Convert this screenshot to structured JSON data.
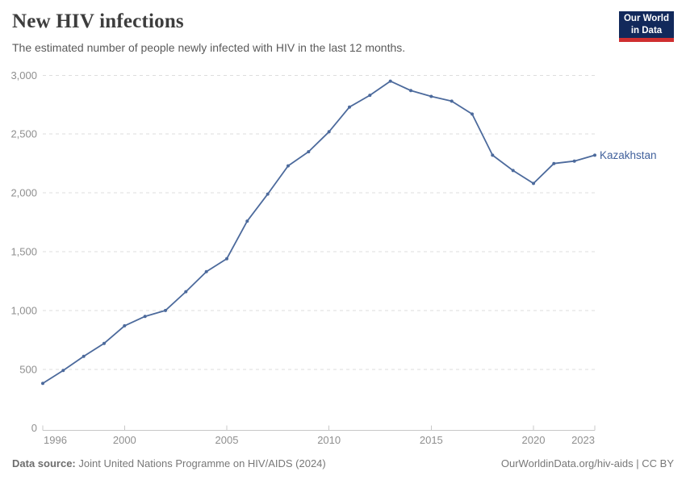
{
  "header": {
    "title": "New HIV infections",
    "subtitle": "The estimated number of people newly infected with HIV in the last 12 months.",
    "logo": {
      "line1": "Our World",
      "line2": "in Data"
    }
  },
  "footer": {
    "source_label": "Data source:",
    "source_text": "Joint United Nations Programme on HIV/AIDS (2024)",
    "link_text": "OurWorldinData.org/hiv-aids | CC BY"
  },
  "colors": {
    "line": "#4c6a9c",
    "series_label": "#41619c",
    "grid": "#dddddd",
    "axis": "#c8c8c8",
    "tick_text": "#8f8f8f",
    "title_text": "#3d3d3d",
    "subtitle_text": "#5b5b5b",
    "footer_text": "#787878",
    "logo_bg": "#12295b",
    "logo_red": "#cf2f30"
  },
  "chart_data": {
    "type": "line",
    "title": "New HIV infections",
    "xlabel": "",
    "ylabel": "",
    "grid": true,
    "legend_position": "line-end-label",
    "ylim": [
      0,
      3000
    ],
    "xlim": [
      1996,
      2023
    ],
    "series": [
      {
        "name": "Kazakhstan",
        "x": [
          1996,
          1997,
          1998,
          1999,
          2000,
          2001,
          2002,
          2003,
          2004,
          2005,
          2006,
          2007,
          2008,
          2009,
          2010,
          2011,
          2012,
          2013,
          2014,
          2015,
          2016,
          2017,
          2018,
          2019,
          2020,
          2021,
          2022,
          2023
        ],
        "values": [
          380,
          490,
          610,
          720,
          870,
          950,
          1000,
          1160,
          1330,
          1440,
          1760,
          1990,
          2230,
          2350,
          2520,
          2730,
          2830,
          2950,
          2870,
          2820,
          2780,
          2670,
          2320,
          2190,
          2080,
          2250,
          2270,
          2320
        ]
      }
    ],
    "yticks": [
      {
        "v": 0,
        "label": "0"
      },
      {
        "v": 500,
        "label": "500"
      },
      {
        "v": 1000,
        "label": "1,000"
      },
      {
        "v": 1500,
        "label": "1,500"
      },
      {
        "v": 2000,
        "label": "2,000"
      },
      {
        "v": 2500,
        "label": "2,500"
      },
      {
        "v": 3000,
        "label": "3,000"
      }
    ],
    "xticks": [
      {
        "v": 1996,
        "label": "1996"
      },
      {
        "v": 2000,
        "label": "2000"
      },
      {
        "v": 2005,
        "label": "2005"
      },
      {
        "v": 2010,
        "label": "2010"
      },
      {
        "v": 2015,
        "label": "2015"
      },
      {
        "v": 2020,
        "label": "2020"
      },
      {
        "v": 2023,
        "label": "2023"
      }
    ]
  }
}
